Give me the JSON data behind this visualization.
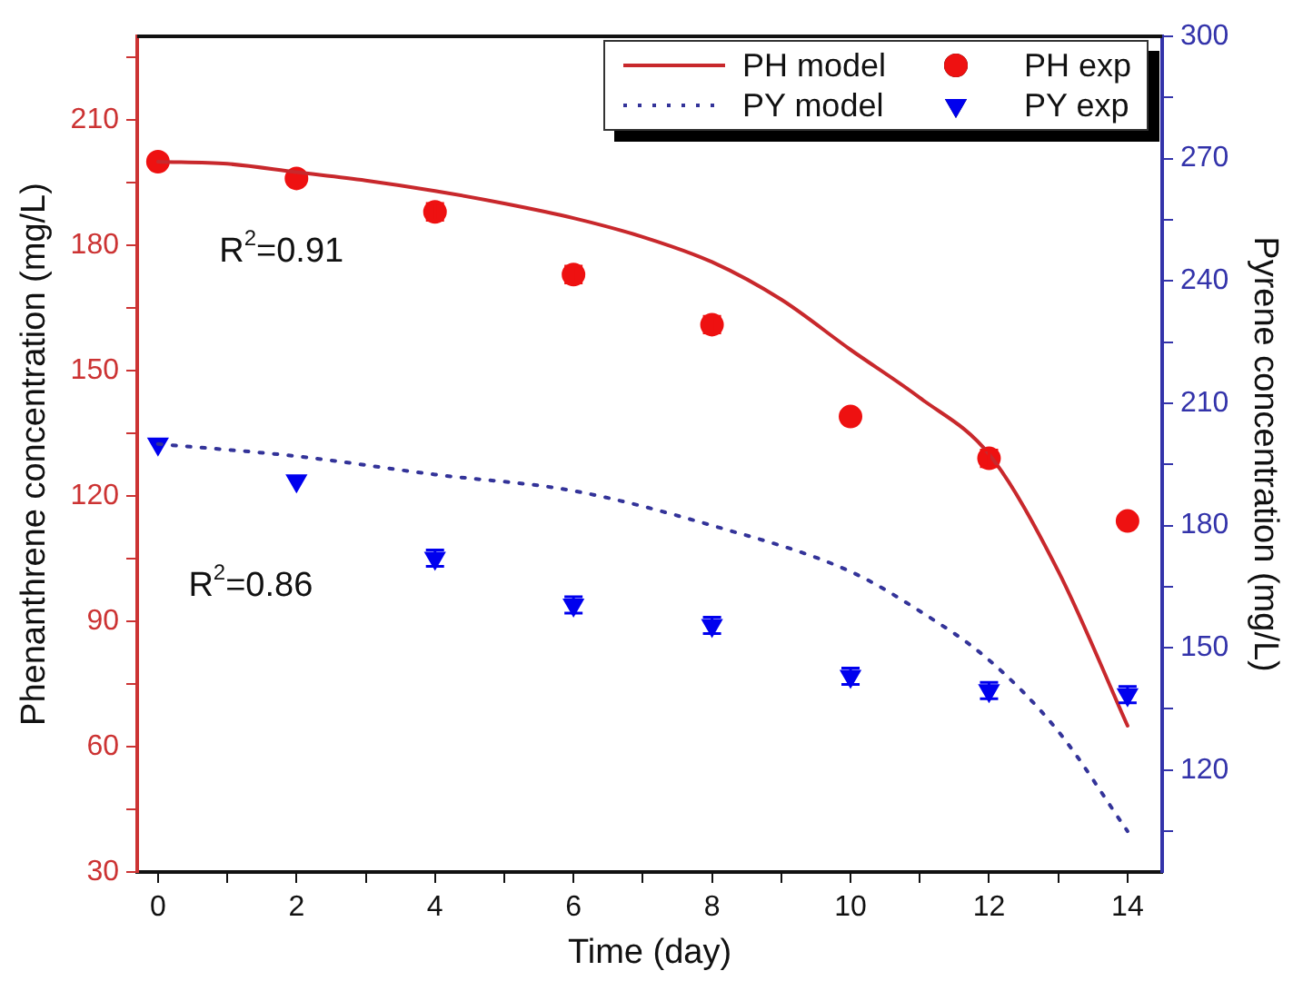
{
  "chart_data": {
    "type": "scatter",
    "xlabel": "Time (day)",
    "ylabel": "Phenanthrene concentration (mg/L)",
    "y2label": "Pyrene concentration (mg/L)",
    "xlim": [
      -0.3,
      14.5
    ],
    "xticks": [
      0,
      {
        "value": 1,
        "label": null
      },
      2,
      {
        "value": 3,
        "label": null
      },
      4,
      {
        "value": 5,
        "label": null
      },
      6,
      {
        "value": 7,
        "label": null
      },
      8,
      {
        "value": 9,
        "label": null
      },
      10,
      {
        "value": 11,
        "label": null
      },
      12,
      {
        "value": 13,
        "label": null
      },
      14
    ],
    "ylim": [
      30,
      230
    ],
    "yticks": [
      30,
      {
        "value": 45,
        "label": null
      },
      60,
      {
        "value": 75,
        "label": null
      },
      90,
      {
        "value": 105,
        "label": null
      },
      120,
      {
        "value": 135,
        "label": null
      },
      150,
      {
        "value": 165,
        "label": null
      },
      180,
      {
        "value": 195,
        "label": null
      },
      210,
      {
        "value": 225,
        "label": null
      }
    ],
    "y2lim": [
      95,
      300
    ],
    "y2ticks": [
      {
        "value": 105,
        "label": null
      },
      120,
      {
        "value": 135,
        "label": null
      },
      150,
      {
        "value": 165,
        "label": null
      },
      180,
      {
        "value": 195,
        "label": null
      },
      210,
      {
        "value": 225,
        "label": null
      },
      240,
      {
        "value": 255,
        "label": null
      },
      270,
      {
        "value": 285,
        "label": null
      },
      300
    ],
    "grid": false,
    "legend": "top right",
    "series": [
      {
        "name": "PH model",
        "type": "line",
        "axis": "y",
        "color": "#c8282c",
        "line_style": "solid",
        "marker": "none",
        "x": [
          0,
          1,
          2,
          3,
          4,
          5,
          6,
          7,
          8,
          9,
          10,
          11,
          12,
          13,
          14
        ],
        "values": [
          200,
          199.5,
          197.5,
          195.5,
          193,
          190,
          186.5,
          182,
          176,
          167,
          155,
          143.5,
          130,
          102,
          65
        ]
      },
      {
        "name": "PH exp",
        "axis": "y",
        "color": "#ee1111",
        "marker": "circle",
        "x": [
          0,
          2,
          4,
          6,
          8,
          10,
          12,
          14
        ],
        "values": [
          200,
          196,
          188,
          173,
          161,
          139,
          129,
          114
        ],
        "errors": [
          null,
          null,
          2,
          2,
          2,
          null,
          2,
          null
        ]
      },
      {
        "name": "PY model",
        "type": "line",
        "axis": "y2",
        "color": "#333399",
        "line_style": "dotted",
        "marker": "none",
        "x": [
          0,
          2,
          4,
          6,
          8,
          10,
          11,
          12,
          13,
          14
        ],
        "values": [
          200,
          197,
          192.5,
          188.5,
          180,
          168.7,
          159,
          147,
          129.5,
          105
        ]
      },
      {
        "name": "PY exp",
        "axis": "y2",
        "color": "#0000ee",
        "marker": "triangle",
        "x": [
          0,
          2,
          4,
          6,
          8,
          10,
          12,
          14
        ],
        "values": [
          200,
          191,
          172,
          160.5,
          155.5,
          143,
          139.5,
          138.5
        ],
        "errors": [
          null,
          null,
          2,
          2,
          2,
          2,
          2,
          2
        ]
      }
    ],
    "annotations": [
      "R$^{2}$=0.91",
      "R$^{2}$=0.86"
    ]
  }
}
